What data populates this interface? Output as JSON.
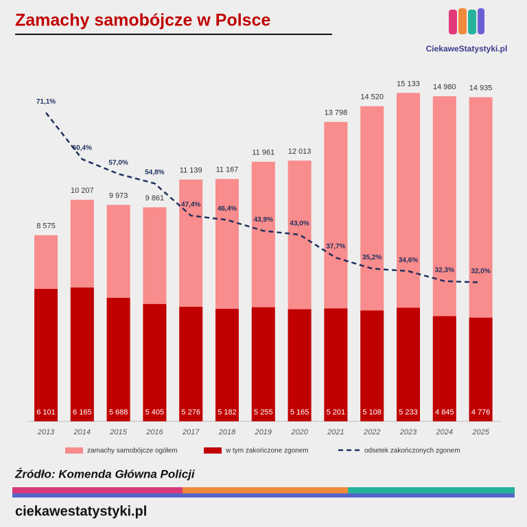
{
  "header": {
    "title": "Zamachy samobójcze w Polsce",
    "logo": "CiekaweStatystyki.pl"
  },
  "chart_data": {
    "type": "bar",
    "categories": [
      "2013",
      "2014",
      "2015",
      "2016",
      "2017",
      "2018",
      "2019",
      "2020",
      "2021",
      "2022",
      "2023",
      "2024",
      "2025"
    ],
    "series": [
      {
        "name": "zamachy samobójcze ogółem",
        "color": "#f98c8c",
        "values": [
          8575,
          10207,
          9973,
          9861,
          11139,
          11167,
          11961,
          12013,
          13798,
          14520,
          15133,
          14980,
          14935
        ],
        "value_labels": [
          "8 575",
          "10 207",
          "9 973",
          "9 861",
          "11 139",
          "11 167",
          "11 961",
          "12 013",
          "13 798",
          "14 520",
          "15 133",
          "14 980",
          "14 935"
        ]
      },
      {
        "name": "w tym zakończone zgonem",
        "color": "#c00000",
        "values": [
          6101,
          6165,
          5688,
          5405,
          5276,
          5182,
          5255,
          5165,
          5201,
          5108,
          5233,
          4845,
          4776
        ],
        "value_labels": [
          "6 101",
          "6 165",
          "5 688",
          "5 405",
          "5 276",
          "5 182",
          "5 255",
          "5 165",
          "5 201",
          "5 108",
          "5 233",
          "4 845",
          "4 776"
        ]
      },
      {
        "name": "odsetek zakończonych zgonem",
        "type": "line",
        "axis": "y2",
        "color": "#1f2f5e",
        "values": [
          71.1,
          60.4,
          57.0,
          54.8,
          47.4,
          46.4,
          43.9,
          43.0,
          37.7,
          35.2,
          34.6,
          32.3,
          32.0
        ],
        "value_labels": [
          "71,1%",
          "60,4%",
          "57,0%",
          "54,8%",
          "47,4%",
          "46,4%",
          "43,9%",
          "43,0%",
          "37,7%",
          "35,2%",
          "34,6%",
          "32,3%",
          "32,0%"
        ]
      }
    ],
    "ylim": [
      0,
      16000
    ],
    "y2lim": [
      0,
      80
    ]
  },
  "footer": {
    "source": "Źródło: Komenda Główna Policji",
    "site": "ciekawestatystyki.pl"
  }
}
